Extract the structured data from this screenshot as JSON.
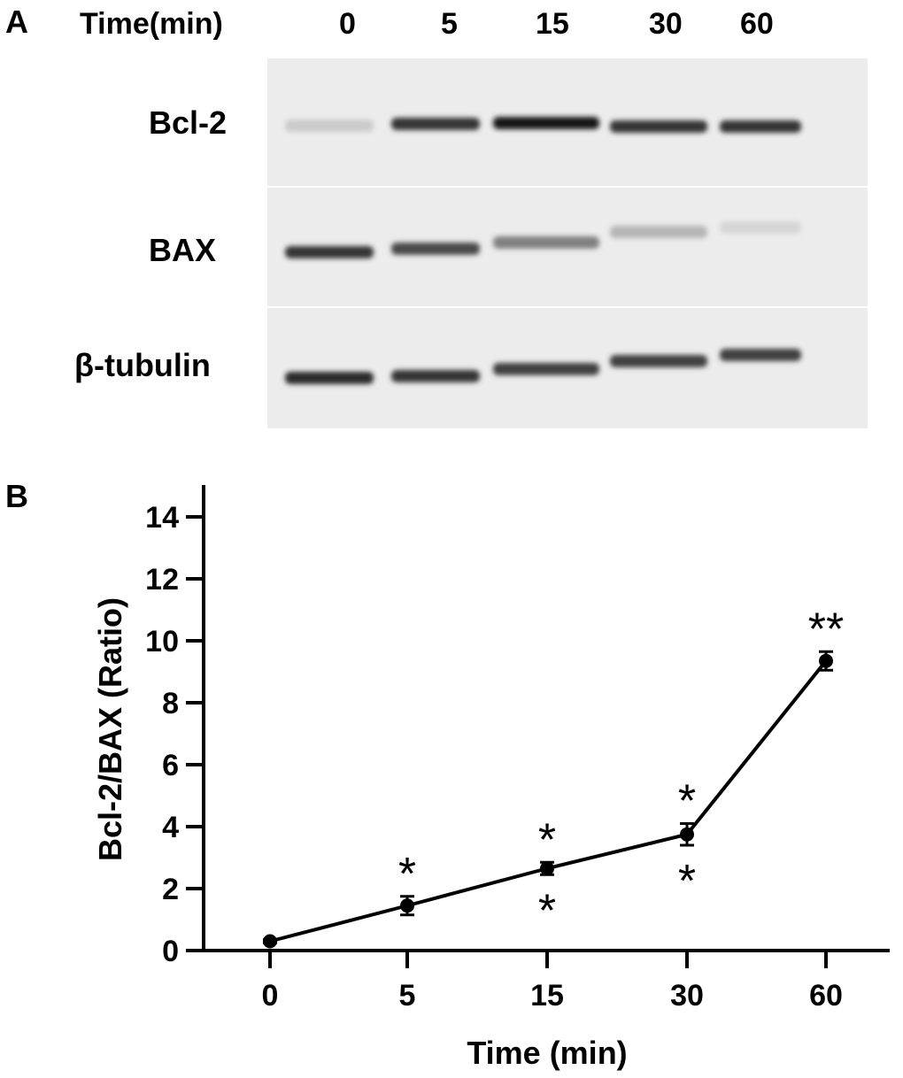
{
  "figure": {
    "panel_a": {
      "letter": "A",
      "time_header": "Time(min)",
      "lanes": [
        "0",
        "5",
        "15",
        "30",
        "60"
      ],
      "rows": [
        {
          "label": "Bcl-2",
          "band_intensity": [
            0.15,
            0.85,
            1.0,
            0.85,
            0.85
          ]
        },
        {
          "label": "BAX",
          "band_intensity": [
            0.85,
            0.75,
            0.5,
            0.25,
            0.1
          ]
        },
        {
          "label": "β-tubulin",
          "band_intensity": [
            0.9,
            0.85,
            0.8,
            0.8,
            0.8
          ]
        }
      ]
    },
    "panel_b": {
      "letter": "B"
    }
  },
  "chart_data": {
    "type": "line",
    "xlabel": "Time (min)",
    "ylabel": "Bcl-2/BAX (Ratio)",
    "categories": [
      "0",
      "5",
      "15",
      "30",
      "60"
    ],
    "ylim": [
      0,
      15
    ],
    "yticks": [
      0,
      2,
      4,
      6,
      8,
      10,
      12,
      14
    ],
    "series": [
      {
        "values": [
          0.3,
          1.45,
          2.65,
          3.75,
          9.35
        ],
        "errors": [
          0.05,
          0.3,
          0.2,
          0.35,
          0.3
        ]
      }
    ],
    "annotations": [
      {
        "category": "5",
        "text": "*",
        "position": "above"
      },
      {
        "category": "15",
        "text": "*",
        "position": "above"
      },
      {
        "category": "15",
        "text": "*",
        "position": "below"
      },
      {
        "category": "30",
        "text": "*",
        "position": "above"
      },
      {
        "category": "30",
        "text": "*",
        "position": "below"
      },
      {
        "category": "60",
        "text": "**",
        "position": "above"
      }
    ],
    "grid": false
  }
}
